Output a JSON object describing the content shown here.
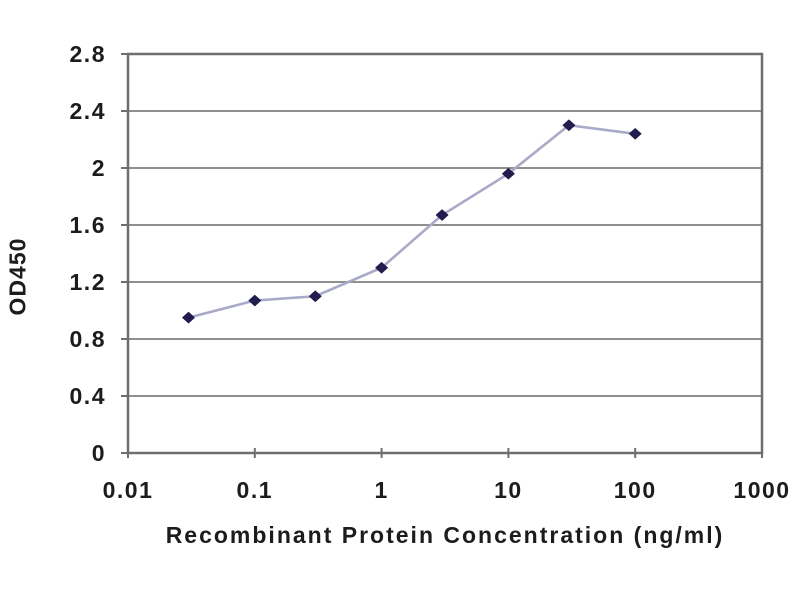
{
  "chart_data": {
    "type": "line",
    "title": "",
    "xlabel": "Recombinant Protein Concentration (ng/ml)",
    "ylabel": "OD450",
    "xscale": "log",
    "xlim": [
      0.01,
      1000
    ],
    "ylim": [
      0,
      2.8
    ],
    "x_ticks": [
      0.01,
      0.1,
      1,
      10,
      100,
      1000
    ],
    "x_tick_labels": [
      "0.01",
      "0.1",
      "1",
      "10",
      "100",
      "1000"
    ],
    "y_ticks": [
      0,
      0.4,
      0.8,
      1.2,
      1.6,
      2,
      2.4,
      2.8
    ],
    "y_tick_labels": [
      "0",
      "0.4",
      "0.8",
      "1.2",
      "1.6",
      "2",
      "2.4",
      "2.8"
    ],
    "grid": "horizontal",
    "legend": "none",
    "series": [
      {
        "name": "OD450",
        "x": [
          0.03,
          0.1,
          0.3,
          1,
          3,
          10,
          30,
          100
        ],
        "y": [
          0.95,
          1.07,
          1.1,
          1.3,
          1.67,
          1.96,
          2.3,
          2.24
        ],
        "marker": "diamond"
      }
    ],
    "colors": {
      "line": "#a9a9c8",
      "marker": "#221d4e",
      "gridline": "#8f8f8f",
      "axis": "#6e6e6e",
      "text": "#1c1c1c",
      "background": "#ffffff"
    }
  }
}
